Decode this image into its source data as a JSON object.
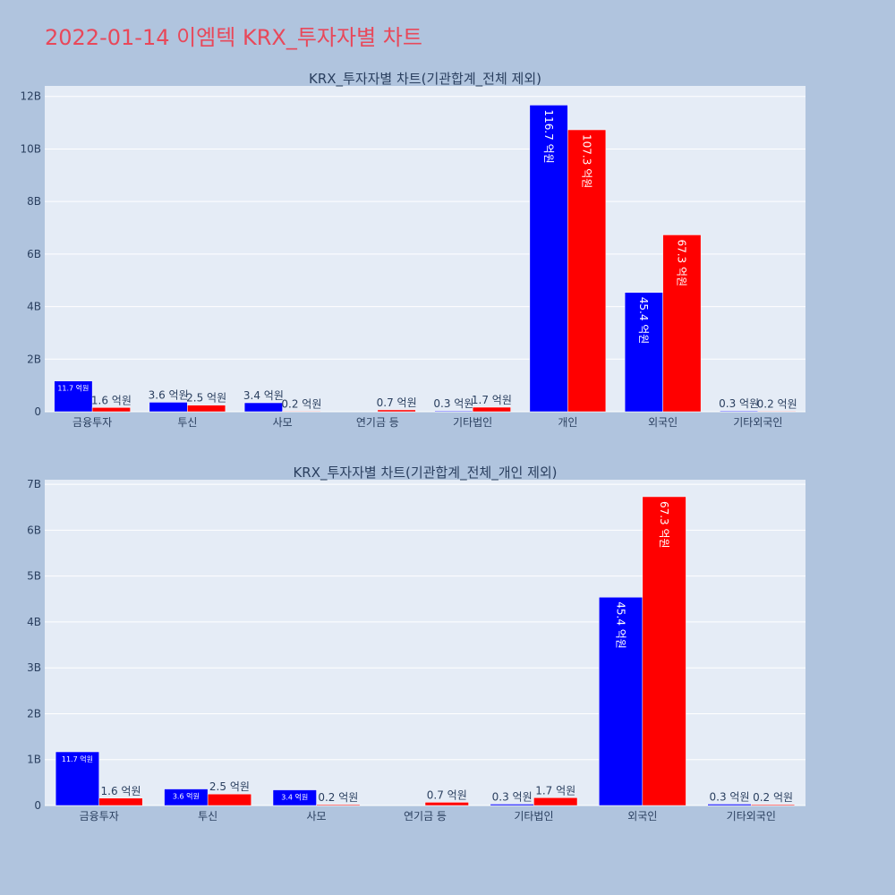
{
  "title": "2022-01-14 이엠텍 KRX_투자자별 차트",
  "colors": {
    "buy": "#0000ff",
    "sell": "#ff0000",
    "plot_bg": "#e5ecf6",
    "page_bg": "#b0c4de",
    "title": "#e8485a"
  },
  "chart_data": [
    {
      "type": "bar",
      "title": "KRX_투자자별 차트(기관합계_전체 제외)",
      "categories": [
        "금융투자",
        "투신",
        "사모",
        "연기금 등",
        "기타법인",
        "개인",
        "외국인",
        "기타외국인"
      ],
      "series": [
        {
          "values": [
            1170000000,
            360000000,
            340000000,
            0,
            30000000,
            11670000000,
            4540000000,
            30000000
          ],
          "labels": [
            "11.7 억원",
            "3.6 억원",
            "3.4 억원",
            "",
            "0.3 억원",
            "116.7 억원",
            "45.4 억원",
            "0.3 억원"
          ]
        },
        {
          "values": [
            160000000,
            250000000,
            20000000,
            70000000,
            170000000,
            10730000000,
            6730000000,
            20000000
          ],
          "labels": [
            "1.6 억원",
            "2.5 억원",
            "0.2 억원",
            "0.7 억원",
            "1.7 억원",
            "107.3 억원",
            "67.3 억원",
            "0.2 억원"
          ]
        }
      ],
      "ylim": [
        0,
        12400000000
      ],
      "yticks": [
        0,
        2000000000,
        4000000000,
        6000000000,
        8000000000,
        10000000000,
        12000000000
      ],
      "ytick_labels": [
        "0",
        "2B",
        "4B",
        "6B",
        "8B",
        "10B",
        "12B"
      ],
      "grid": true
    },
    {
      "type": "bar",
      "title": "KRX_투자자별 차트(기관합계_전체_개인 제외)",
      "categories": [
        "금융투자",
        "투신",
        "사모",
        "연기금 등",
        "기타법인",
        "외국인",
        "기타외국인"
      ],
      "series": [
        {
          "values": [
            1170000000,
            360000000,
            340000000,
            0,
            30000000,
            4540000000,
            30000000
          ],
          "labels": [
            "11.7 억원",
            "3.6 억원",
            "3.4 억원",
            "",
            "0.3 억원",
            "45.4 억원",
            "0.3 억원"
          ]
        },
        {
          "values": [
            160000000,
            250000000,
            20000000,
            70000000,
            170000000,
            6730000000,
            20000000
          ],
          "labels": [
            "1.6 억원",
            "2.5 억원",
            "0.2 억원",
            "0.7 억원",
            "1.7 억원",
            "67.3 억원",
            "0.2 억원"
          ]
        }
      ],
      "ylim": [
        0,
        7100000000
      ],
      "yticks": [
        0,
        1000000000,
        2000000000,
        3000000000,
        4000000000,
        5000000000,
        6000000000,
        7000000000
      ],
      "ytick_labels": [
        "0",
        "1B",
        "2B",
        "3B",
        "4B",
        "5B",
        "6B",
        "7B"
      ],
      "grid": true
    }
  ]
}
